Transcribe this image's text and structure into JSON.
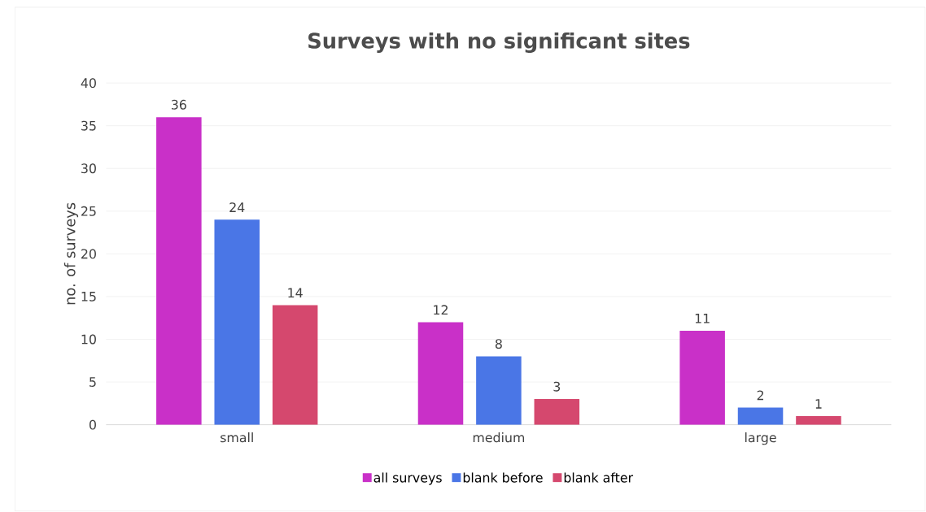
{
  "chart_data": {
    "type": "bar",
    "title": "Surveys with no significant sites",
    "ylabel": "no. of surveys",
    "categories": [
      "small",
      "medium",
      "large"
    ],
    "series": [
      {
        "name": "all surveys",
        "color": "#c930c8",
        "values": [
          36,
          12,
          11
        ]
      },
      {
        "name": "blank before",
        "color": "#4a76e6",
        "values": [
          24,
          8,
          2
        ]
      },
      {
        "name": "blank after",
        "color": "#d5486e",
        "values": [
          14,
          3,
          1
        ]
      }
    ],
    "ylim": [
      0,
      40
    ],
    "yticks": [
      0,
      5,
      10,
      15,
      20,
      25,
      30,
      35,
      40
    ],
    "grid": "y",
    "legend": "bottom",
    "data_labels": true
  }
}
